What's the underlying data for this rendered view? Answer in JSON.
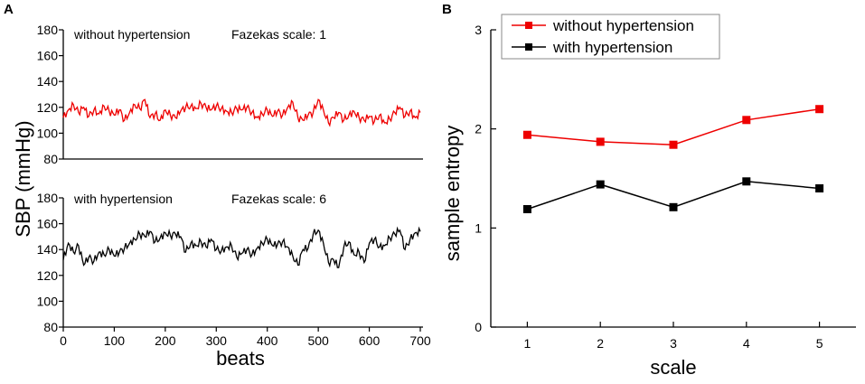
{
  "panel_a_label": "A",
  "panel_b_label": "B",
  "colors": {
    "red": "#ee0000",
    "black": "#000000"
  },
  "chart_data": [
    {
      "id": "a-top",
      "type": "line",
      "title": "without hypertension",
      "annotation": "Fazekas scale: 1",
      "xlabel": "beats",
      "ylabel": "SBP (mmHg)",
      "xlim": [
        0,
        700
      ],
      "ylim": [
        80,
        180
      ],
      "yticks": [
        80,
        100,
        120,
        140,
        160,
        180
      ],
      "color": "#ee0000",
      "x": [
        0,
        10,
        20,
        30,
        40,
        50,
        60,
        70,
        80,
        90,
        100,
        110,
        120,
        130,
        140,
        150,
        160,
        170,
        180,
        190,
        200,
        210,
        220,
        230,
        240,
        250,
        260,
        270,
        280,
        290,
        300,
        310,
        320,
        330,
        340,
        350,
        360,
        370,
        380,
        390,
        400,
        410,
        420,
        430,
        440,
        450,
        460,
        470,
        480,
        490,
        500,
        510,
        520,
        530,
        540,
        550,
        560,
        570,
        580,
        590,
        600,
        610,
        620,
        630,
        640,
        650,
        660,
        670,
        680,
        690,
        700
      ],
      "y": [
        112,
        118,
        122,
        116,
        120,
        113,
        118,
        115,
        121,
        117,
        114,
        118,
        110,
        116,
        122,
        119,
        126,
        112,
        115,
        110,
        118,
        114,
        112,
        117,
        120,
        121,
        119,
        123,
        120,
        118,
        121,
        119,
        117,
        116,
        119,
        118,
        120,
        116,
        112,
        115,
        118,
        113,
        117,
        114,
        120,
        124,
        112,
        110,
        114,
        116,
        126,
        118,
        108,
        112,
        116,
        110,
        114,
        117,
        112,
        110,
        113,
        109,
        114,
        108,
        111,
        116,
        120,
        113,
        117,
        112,
        116
      ]
    },
    {
      "id": "a-bottom",
      "type": "line",
      "title": "with hypertension",
      "annotation": "Fazekas scale: 6",
      "xlabel": "beats",
      "ylabel": "SBP (mmHg)",
      "xlim": [
        0,
        700
      ],
      "ylim": [
        80,
        180
      ],
      "yticks": [
        80,
        100,
        120,
        140,
        160,
        180
      ],
      "xticks": [
        0,
        100,
        200,
        300,
        400,
        500,
        600,
        700
      ],
      "color": "#000000",
      "x": [
        0,
        10,
        20,
        30,
        40,
        50,
        60,
        70,
        80,
        90,
        100,
        110,
        120,
        130,
        140,
        150,
        160,
        170,
        180,
        190,
        200,
        210,
        220,
        230,
        240,
        250,
        260,
        270,
        280,
        290,
        300,
        310,
        320,
        330,
        340,
        350,
        360,
        370,
        380,
        390,
        400,
        410,
        420,
        430,
        440,
        450,
        460,
        470,
        480,
        490,
        500,
        510,
        520,
        530,
        540,
        550,
        560,
        570,
        580,
        590,
        600,
        610,
        620,
        630,
        640,
        650,
        660,
        670,
        680,
        690,
        700
      ],
      "y": [
        132,
        145,
        138,
        143,
        128,
        134,
        131,
        138,
        136,
        140,
        135,
        138,
        141,
        145,
        148,
        152,
        150,
        154,
        146,
        149,
        153,
        151,
        152,
        150,
        138,
        145,
        143,
        146,
        142,
        148,
        140,
        139,
        142,
        143,
        134,
        137,
        140,
        136,
        141,
        145,
        148,
        143,
        144,
        146,
        142,
        135,
        128,
        140,
        141,
        152,
        155,
        145,
        130,
        132,
        126,
        142,
        146,
        136,
        138,
        130,
        145,
        148,
        142,
        143,
        149,
        152,
        155,
        140,
        148,
        153,
        154
      ]
    },
    {
      "id": "b",
      "type": "line",
      "xlabel": "scale",
      "ylabel": "sample entropy",
      "xlim": [
        0.5,
        5.5
      ],
      "ylim": [
        0,
        3
      ],
      "categories": [
        1,
        2,
        3,
        4,
        5
      ],
      "yticks": [
        0,
        1,
        2,
        3
      ],
      "legend": "top-left",
      "series": [
        {
          "name": "without hypertension",
          "color": "#ee0000",
          "values": [
            1.94,
            1.87,
            1.84,
            2.09,
            2.2
          ]
        },
        {
          "name": "with hypertension",
          "color": "#000000",
          "values": [
            1.19,
            1.44,
            1.21,
            1.47,
            1.4
          ]
        }
      ]
    }
  ]
}
